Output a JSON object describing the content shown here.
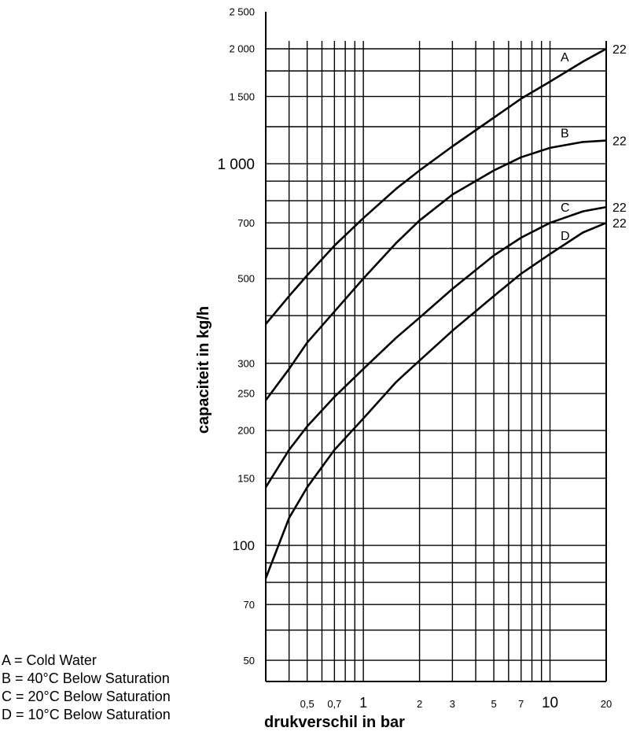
{
  "chart_data": {
    "type": "line",
    "xlabel": "drukverschil in bar",
    "ylabel": "capaciteit in kg/h",
    "x_scale": "log",
    "y_scale": "log",
    "xlim": [
      0.3,
      20
    ],
    "ylim": [
      44,
      2500
    ],
    "grid": true,
    "x_ticks": [
      {
        "value": 0.5,
        "label": "0,5"
      },
      {
        "value": 0.7,
        "label": "0,7"
      },
      {
        "value": 1,
        "label": "1"
      },
      {
        "value": 2,
        "label": "2"
      },
      {
        "value": 3,
        "label": "3"
      },
      {
        "value": 5,
        "label": "5"
      },
      {
        "value": 7,
        "label": "7"
      },
      {
        "value": 10,
        "label": "10"
      },
      {
        "value": 20,
        "label": "20"
      }
    ],
    "y_ticks": [
      {
        "value": 50,
        "label": "50"
      },
      {
        "value": 70,
        "label": "70"
      },
      {
        "value": 100,
        "label": "100"
      },
      {
        "value": 150,
        "label": "150"
      },
      {
        "value": 200,
        "label": "200"
      },
      {
        "value": 250,
        "label": "250"
      },
      {
        "value": 300,
        "label": "300"
      },
      {
        "value": 500,
        "label": "500"
      },
      {
        "value": 700,
        "label": "700"
      },
      {
        "value": 1000,
        "label": "1 000"
      },
      {
        "value": 1500,
        "label": "1 500"
      },
      {
        "value": 2000,
        "label": "2 000"
      },
      {
        "value": 2500,
        "label": "2 500"
      }
    ],
    "x_grid": [
      0.3,
      0.4,
      0.5,
      0.6,
      0.7,
      0.8,
      0.9,
      1,
      2,
      3,
      4,
      5,
      6,
      7,
      8,
      9,
      10,
      20
    ],
    "y_grid": [
      50,
      60,
      70,
      80,
      90,
      100,
      125,
      150,
      175,
      200,
      250,
      300,
      400,
      500,
      600,
      700,
      800,
      900,
      1000,
      1250,
      1500,
      1750,
      2000
    ],
    "series": [
      {
        "name": "A",
        "end_label": "22",
        "x": [
          0.3,
          0.4,
          0.5,
          0.7,
          1,
          1.5,
          2,
          3,
          5,
          7,
          10,
          15,
          20
        ],
        "y": [
          380,
          450,
          510,
          610,
          720,
          860,
          960,
          1110,
          1320,
          1480,
          1640,
          1850,
          2000
        ]
      },
      {
        "name": "B",
        "end_label": "22",
        "x": [
          0.3,
          0.4,
          0.5,
          0.7,
          1,
          1.5,
          2,
          3,
          5,
          7,
          10,
          15,
          20
        ],
        "y": [
          240,
          290,
          340,
          410,
          500,
          620,
          710,
          830,
          960,
          1040,
          1100,
          1140,
          1150
        ]
      },
      {
        "name": "C",
        "end_label": "22",
        "x": [
          0.3,
          0.4,
          0.5,
          0.7,
          1,
          1.5,
          2,
          3,
          5,
          7,
          10,
          15,
          20
        ],
        "y": [
          142,
          178,
          205,
          245,
          290,
          350,
          395,
          470,
          575,
          640,
          700,
          750,
          770
        ]
      },
      {
        "name": "D",
        "end_label": "22",
        "x": [
          0.3,
          0.4,
          0.5,
          0.7,
          1,
          1.5,
          2,
          3,
          5,
          7,
          10,
          15,
          20
        ],
        "y": [
          82,
          118,
          142,
          178,
          215,
          268,
          305,
          365,
          450,
          515,
          580,
          660,
          700
        ]
      }
    ],
    "legend": [
      "A = Cold Water",
      "B = 40°C Below Saturation",
      "C = 20°C Below Saturation",
      "D = 10°C Below Saturation"
    ]
  },
  "colors": {
    "line": "#000000",
    "grid": "#000000",
    "background": "#ffffff"
  }
}
